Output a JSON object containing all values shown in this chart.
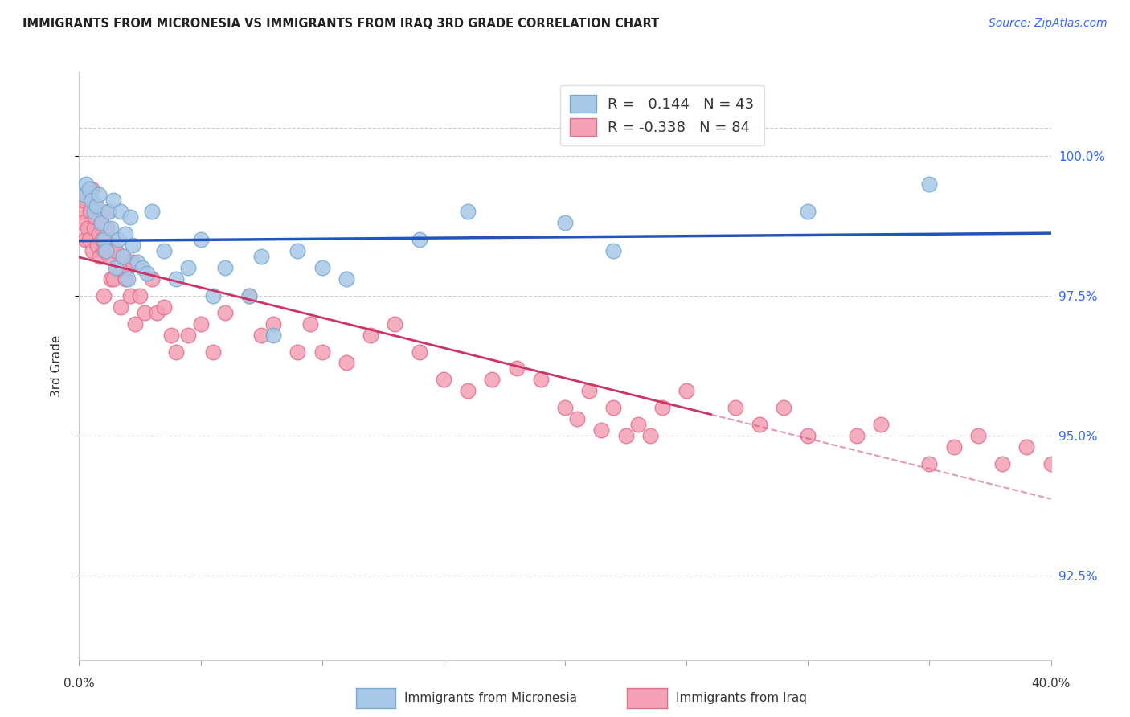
{
  "title": "IMMIGRANTS FROM MICRONESIA VS IMMIGRANTS FROM IRAQ 3RD GRADE CORRELATION CHART",
  "source": "Source: ZipAtlas.com",
  "ylabel": "3rd Grade",
  "xmin": 0.0,
  "xmax": 40.0,
  "ymin": 91.0,
  "ymax": 101.5,
  "yticks": [
    92.5,
    95.0,
    97.5,
    100.0
  ],
  "ytick_labels": [
    "92.5%",
    "95.0%",
    "97.5%",
    "100.0%"
  ],
  "xticks": [
    0.0,
    5.0,
    10.0,
    15.0,
    20.0,
    25.0,
    30.0,
    35.0,
    40.0
  ],
  "micronesia_color": "#A8C8E8",
  "iraq_color": "#F4A0B5",
  "micronesia_edge": "#7AAAD0",
  "iraq_edge": "#E07090",
  "trend_micronesia_color": "#2255BB",
  "trend_iraq_color": "#CC3366",
  "R_micronesia": "0.144",
  "N_micronesia": 43,
  "R_iraq": "-0.338",
  "N_iraq": 84,
  "micronesia_x": [
    0.2,
    0.3,
    0.4,
    0.5,
    0.6,
    0.7,
    0.8,
    0.9,
    1.0,
    1.1,
    1.2,
    1.3,
    1.4,
    1.5,
    1.6,
    1.7,
    1.8,
    1.9,
    2.0,
    2.1,
    2.2,
    2.4,
    2.6,
    2.8,
    3.0,
    3.5,
    4.0,
    4.5,
    5.0,
    5.5,
    6.0,
    7.0,
    7.5,
    8.0,
    9.0,
    10.0,
    11.0,
    14.0,
    16.0,
    20.0,
    22.0,
    30.0,
    35.0
  ],
  "micronesia_y": [
    99.3,
    99.5,
    99.4,
    99.2,
    99.0,
    99.1,
    99.3,
    98.8,
    98.5,
    98.3,
    99.0,
    98.7,
    99.2,
    98.0,
    98.5,
    99.0,
    98.2,
    98.6,
    97.8,
    98.9,
    98.4,
    98.1,
    98.0,
    97.9,
    99.0,
    98.3,
    97.8,
    98.0,
    98.5,
    97.5,
    98.0,
    97.5,
    98.2,
    96.8,
    98.3,
    98.0,
    97.8,
    98.5,
    99.0,
    98.8,
    98.3,
    99.0,
    99.5
  ],
  "iraq_x": [
    0.1,
    0.15,
    0.2,
    0.25,
    0.3,
    0.35,
    0.4,
    0.45,
    0.5,
    0.55,
    0.6,
    0.65,
    0.7,
    0.75,
    0.8,
    0.85,
    0.9,
    0.95,
    1.0,
    1.05,
    1.1,
    1.15,
    1.2,
    1.25,
    1.3,
    1.35,
    1.4,
    1.5,
    1.6,
    1.7,
    1.8,
    1.9,
    2.0,
    2.1,
    2.2,
    2.3,
    2.5,
    2.7,
    3.0,
    3.2,
    3.5,
    3.8,
    4.0,
    4.5,
    5.0,
    5.5,
    6.0,
    7.0,
    7.5,
    8.0,
    9.0,
    9.5,
    10.0,
    11.0,
    12.0,
    13.0,
    14.0,
    15.0,
    16.0,
    17.0,
    18.0,
    19.0,
    20.0,
    21.0,
    22.0,
    23.0,
    24.0,
    25.0,
    27.0,
    28.0,
    29.0,
    30.0,
    32.0,
    33.0,
    35.0,
    36.0,
    37.0,
    38.0,
    39.0,
    40.0,
    20.5,
    21.5,
    22.5,
    23.5
  ],
  "iraq_y": [
    99.0,
    98.8,
    99.2,
    98.5,
    99.3,
    98.7,
    98.5,
    99.0,
    99.4,
    98.3,
    98.7,
    98.9,
    99.1,
    98.4,
    98.6,
    98.2,
    98.8,
    98.5,
    97.5,
    98.3,
    98.5,
    98.7,
    99.0,
    98.2,
    97.8,
    98.4,
    97.8,
    98.3,
    98.0,
    97.3,
    98.2,
    97.8,
    98.0,
    97.5,
    98.1,
    97.0,
    97.5,
    97.2,
    97.8,
    97.2,
    97.3,
    96.8,
    96.5,
    96.8,
    97.0,
    96.5,
    97.2,
    97.5,
    96.8,
    97.0,
    96.5,
    97.0,
    96.5,
    96.3,
    96.8,
    97.0,
    96.5,
    96.0,
    95.8,
    96.0,
    96.2,
    96.0,
    95.5,
    95.8,
    95.5,
    95.2,
    95.5,
    95.8,
    95.5,
    95.2,
    95.5,
    95.0,
    95.0,
    95.2,
    94.5,
    94.8,
    95.0,
    94.5,
    94.8,
    94.5,
    95.3,
    95.1,
    95.0,
    95.0
  ]
}
